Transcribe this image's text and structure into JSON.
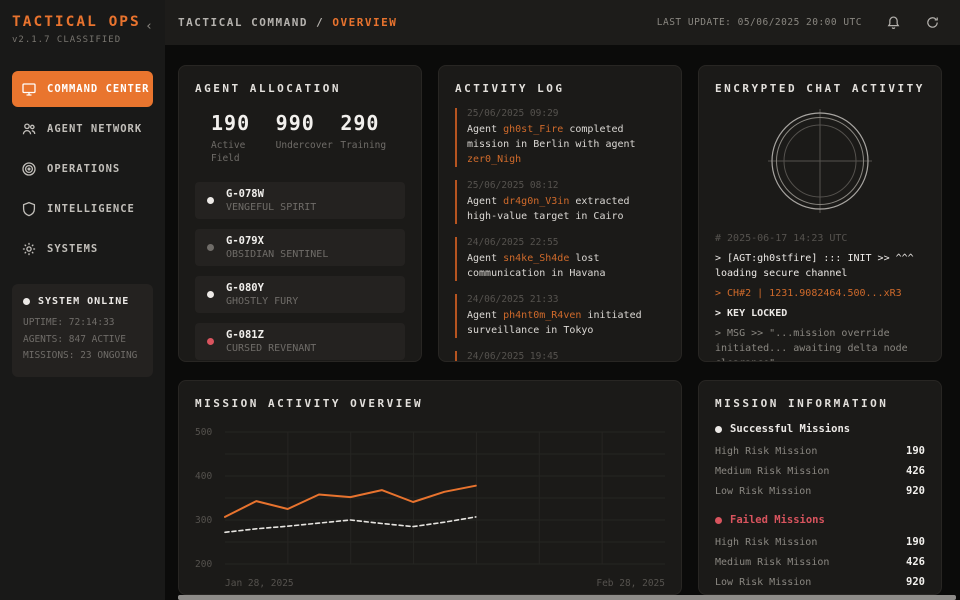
{
  "colors": {
    "accent": "#e8732e",
    "accent_text": "#cf6a2b",
    "red": "#d9545e",
    "white": "#ece9e6",
    "gray": "#6f6c68"
  },
  "app": {
    "title": "TACTICAL OPS",
    "version": "v2.1.7 CLASSIFIED",
    "collapse_glyph": "‹"
  },
  "header": {
    "breadcrumb_root": "TACTICAL COMMAND /",
    "breadcrumb_current": "OVERVIEW",
    "last_update": "LAST UPDATE: 05/06/2025 20:00 UTC"
  },
  "sidebar": {
    "items": [
      {
        "label": "COMMAND CENTER",
        "icon": "monitor-icon",
        "active": true
      },
      {
        "label": "AGENT NETWORK",
        "icon": "users-icon",
        "active": false
      },
      {
        "label": "OPERATIONS",
        "icon": "target-icon",
        "active": false
      },
      {
        "label": "INTELLIGENCE",
        "icon": "shield-icon",
        "active": false
      },
      {
        "label": "SYSTEMS",
        "icon": "gear-icon",
        "active": false
      }
    ],
    "status": {
      "title": "SYSTEM ONLINE",
      "dot_color": "#ece9e6",
      "lines": [
        "UPTIME: 72:14:33",
        "AGENTS: 847 ACTIVE",
        "MISSIONS: 23 ONGOING"
      ]
    }
  },
  "agent_allocation": {
    "title": "AGENT ALLOCATION",
    "stats": [
      {
        "value": "190",
        "label": "Active Field"
      },
      {
        "value": "990",
        "label": "Undercover"
      },
      {
        "value": "290",
        "label": "Training"
      }
    ],
    "agents": [
      {
        "code": "G-078W",
        "name": "VENGEFUL SPIRIT",
        "dot_color": "#ece9e6"
      },
      {
        "code": "G-079X",
        "name": "OBSIDIAN SENTINEL",
        "dot_color": "#6f6c68"
      },
      {
        "code": "G-080Y",
        "name": "GHOSTLY FURY",
        "dot_color": "#ece9e6"
      },
      {
        "code": "G-081Z",
        "name": "CURSED REVENANT",
        "dot_color": "#d9545e"
      }
    ]
  },
  "activity_log": {
    "title": "ACTIVITY LOG",
    "entries": [
      {
        "time": "25/06/2025 09:29",
        "parts": [
          {
            "text": "Agent "
          },
          {
            "text": "gh0st_Fire",
            "accent": true
          },
          {
            "text": " completed mission in Berlin with agent "
          },
          {
            "text": "zer0_Nigh",
            "accent": true
          }
        ]
      },
      {
        "time": "25/06/2025 08:12",
        "parts": [
          {
            "text": "Agent "
          },
          {
            "text": "dr4g0n_V3in",
            "accent": true
          },
          {
            "text": " extracted high-value target in Cairo"
          }
        ]
      },
      {
        "time": "24/06/2025 22:55",
        "parts": [
          {
            "text": "Agent "
          },
          {
            "text": "sn4ke_Sh4de",
            "accent": true
          },
          {
            "text": " lost communication in Havana"
          }
        ]
      },
      {
        "time": "24/06/2025 21:33",
        "parts": [
          {
            "text": "Agent "
          },
          {
            "text": "ph4nt0m_R4ven",
            "accent": true
          },
          {
            "text": " initiated surveillance in Tokyo"
          }
        ]
      },
      {
        "time": "24/06/2025 19:45",
        "parts": []
      }
    ]
  },
  "encrypted_chat": {
    "title": "ENCRYPTED CHAT ACTIVITY",
    "terminal_lines": [
      {
        "tone": "comment",
        "text": "# 2025-06-17 14:23 UTC"
      },
      {
        "tone": "bright",
        "text": "> [AGT:gh0stfire] ::: INIT >> ^^^ loading secure channel"
      },
      {
        "tone": "accent",
        "text": "> CH#2 | 1231.9082464.500...xR3"
      },
      {
        "tone": "key",
        "text": "> KEY LOCKED"
      },
      {
        "tone": "muted",
        "text": "> MSG >> \"...mission override initiated... awaiting delta node clearance\""
      }
    ]
  },
  "chart_data": {
    "type": "line",
    "title": "MISSION ACTIVITY OVERVIEW",
    "xlabel": "",
    "ylabel": "",
    "ylim": [
      200,
      500
    ],
    "yticks": [
      200,
      300,
      400,
      500
    ],
    "grid": true,
    "legend_position": "none",
    "x_start_label": "Jan 28, 2025",
    "x_end_label": "Feb 28, 2025",
    "data_extent_fraction": 0.57,
    "series": [
      {
        "name": "successful-missions",
        "color": "#e8732e",
        "style": "solid",
        "values": [
          307,
          343,
          325,
          358,
          352,
          368,
          341,
          364,
          378
        ]
      },
      {
        "name": "failed-missions",
        "color": "#e6e4e0",
        "style": "dashed",
        "values": [
          272,
          280,
          286,
          293,
          300,
          292,
          285,
          295,
          307
        ]
      }
    ]
  },
  "mission_info": {
    "title": "MISSION INFORMATION",
    "sections": [
      {
        "title": "Successful Missions",
        "dot_color": "#ece9e6",
        "title_color": "#ece9e6",
        "rows": [
          {
            "label": "High Risk Mission",
            "value": "190"
          },
          {
            "label": "Medium Risk Mission",
            "value": "426"
          },
          {
            "label": "Low Risk Mission",
            "value": "920"
          }
        ]
      },
      {
        "title": "Failed Missions",
        "dot_color": "#d9545e",
        "title_color": "#d9545e",
        "rows": [
          {
            "label": "High Risk Mission",
            "value": "190"
          },
          {
            "label": "Medium Risk Mission",
            "value": "426"
          },
          {
            "label": "Low Risk Mission",
            "value": "920"
          }
        ]
      }
    ]
  }
}
